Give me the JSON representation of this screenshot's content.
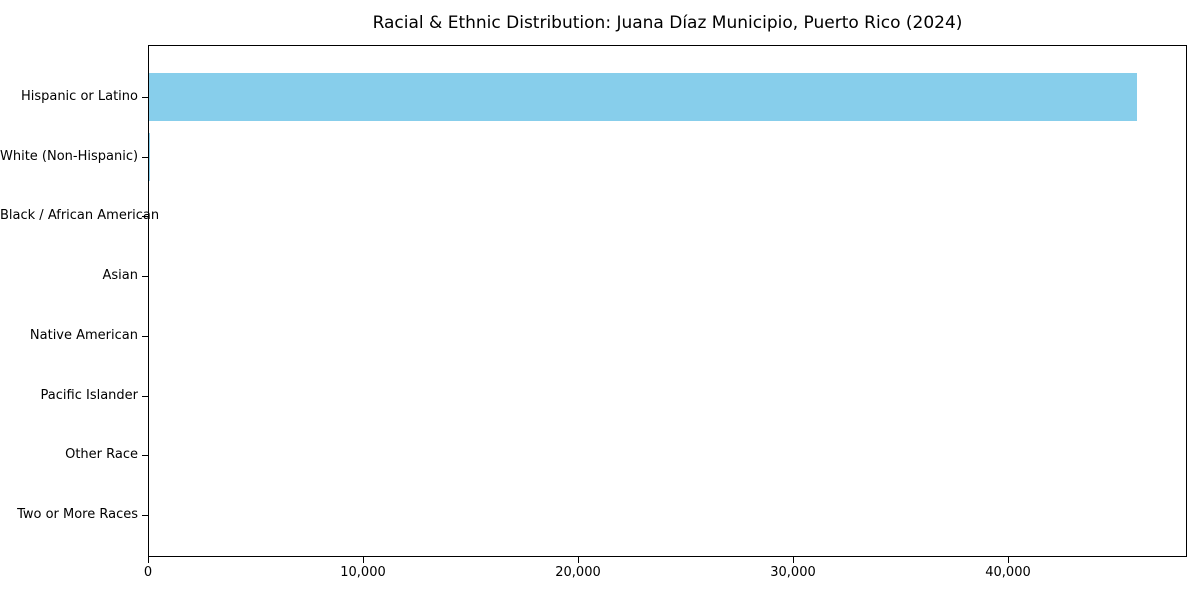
{
  "title": "Racial & Ethnic Distribution: Juana Díaz Municipio, Puerto Rico (2024)",
  "chart_data": {
    "type": "bar",
    "orientation": "horizontal",
    "title": "Racial & Ethnic Distribution: Juana Díaz Municipio, Puerto Rico (2024)",
    "xlabel": "",
    "ylabel": "",
    "categories": [
      "Hispanic or Latino",
      "White (Non-Hispanic)",
      "Black / African American",
      "Asian",
      "Native American",
      "Pacific Islander",
      "Other Race",
      "Two or More Races"
    ],
    "values": [
      45950,
      60,
      0,
      0,
      0,
      0,
      0,
      0
    ],
    "x_ticks": [
      0,
      10000,
      20000,
      30000,
      40000
    ],
    "x_tick_labels": [
      "0",
      "10,000",
      "20,000",
      "30,000",
      "40,000"
    ],
    "xlim": [
      0,
      48325
    ],
    "grid": false,
    "legend": null,
    "bar_color": "#87CEEB",
    "axis_color": "#000000",
    "background_color": "#ffffff"
  }
}
